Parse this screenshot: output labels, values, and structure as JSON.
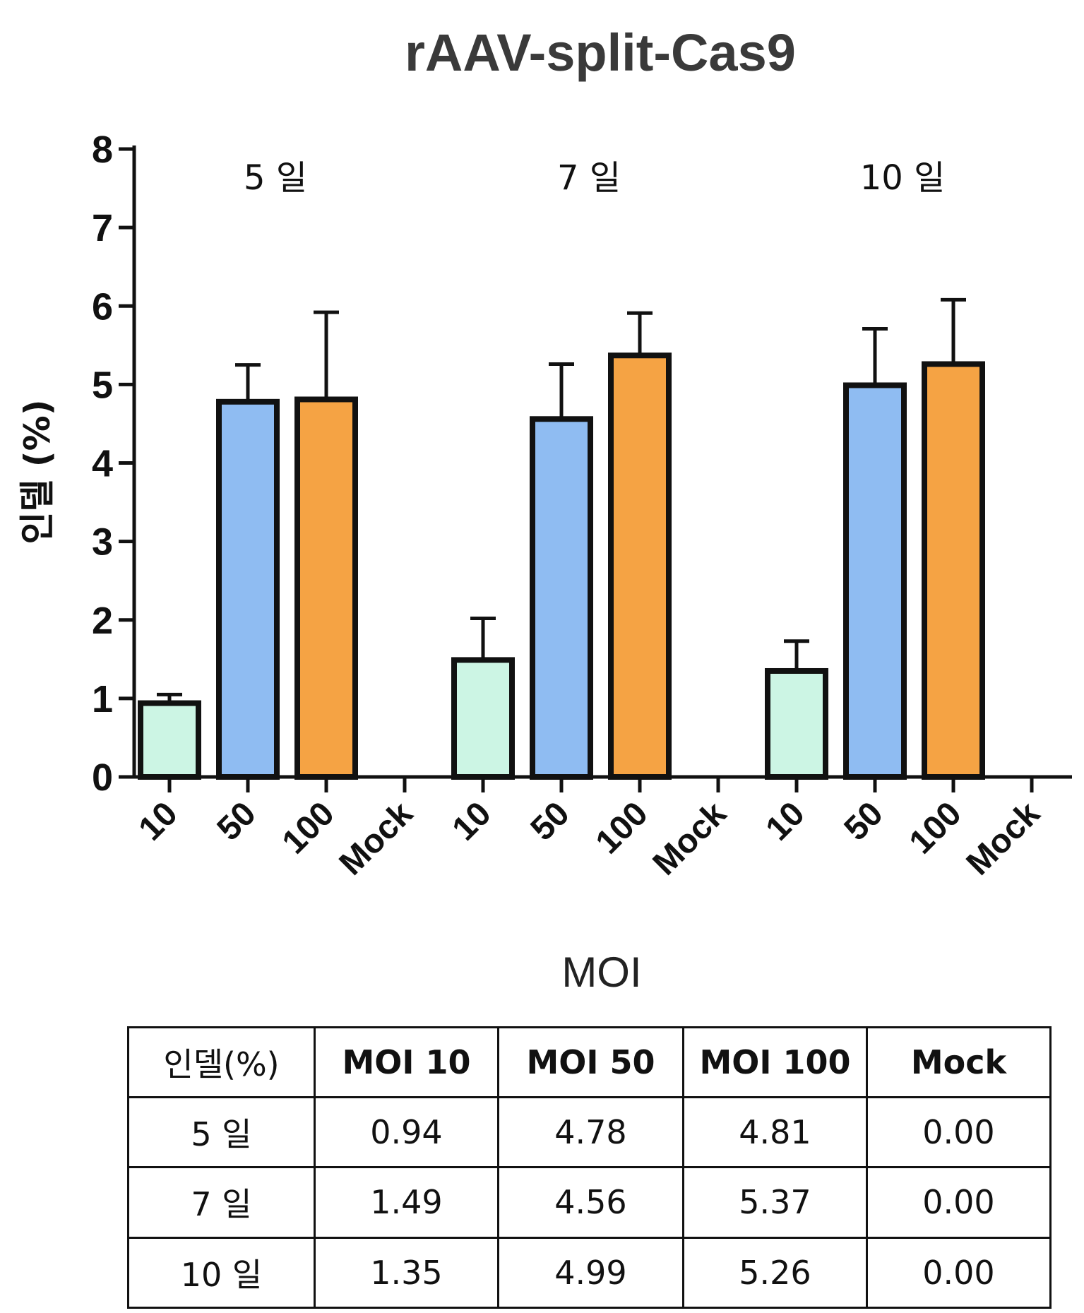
{
  "chart_data": {
    "type": "bar",
    "title": "rAAV-split-Cas9",
    "xlabel": "MOI",
    "ylabel": "인델 (%)",
    "ylim": [
      0,
      8
    ],
    "yticks": [
      "0",
      "1",
      "2",
      "3",
      "4",
      "5",
      "6",
      "7",
      "8"
    ],
    "grid": false,
    "groups": [
      {
        "label": "5 일",
        "categories": [
          "10",
          "50",
          "100",
          "Mock"
        ],
        "values": [
          0.94,
          4.78,
          4.81,
          0.0
        ],
        "errors": [
          0.11,
          0.47,
          1.11,
          0.0
        ]
      },
      {
        "label": "7 일",
        "categories": [
          "10",
          "50",
          "100",
          "Mock"
        ],
        "values": [
          1.49,
          4.56,
          5.37,
          0.0
        ],
        "errors": [
          0.53,
          0.7,
          0.54,
          0.0
        ]
      },
      {
        "label": "10 일",
        "categories": [
          "10",
          "50",
          "100",
          "Mock"
        ],
        "values": [
          1.35,
          4.99,
          5.26,
          0.0
        ],
        "errors": [
          0.38,
          0.72,
          0.82,
          0.0
        ]
      }
    ],
    "colors": {
      "10": "#ccf5e4",
      "50": "#8fbcf2",
      "100": "#f5a344",
      "Mock": "#ffffff",
      "outline": "#111111"
    }
  },
  "table": {
    "headers": [
      "인델(%)",
      "MOI 10",
      "MOI 50",
      "MOI 100",
      "Mock"
    ],
    "rows": [
      [
        "5 일",
        "0.94",
        "4.78",
        "4.81",
        "0.00"
      ],
      [
        "7 일",
        "1.49",
        "4.56",
        "5.37",
        "0.00"
      ],
      [
        "10 일",
        "1.35",
        "4.99",
        "5.26",
        "0.00"
      ]
    ]
  }
}
